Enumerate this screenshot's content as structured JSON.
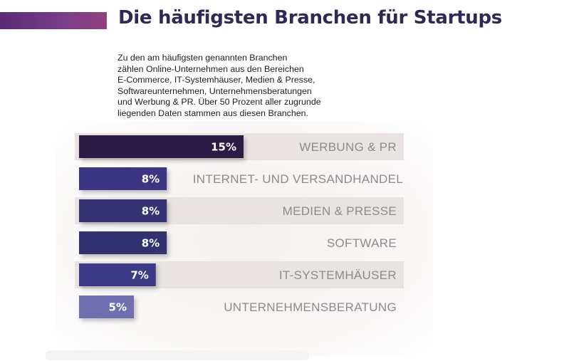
{
  "header": {
    "title": "Die häufigsten Branchen für Startups",
    "accent_color": "#6b3383"
  },
  "intro_text": "Zu den am häufigsten genannten Branchen\nzählen Online-Unternehmen aus den Bereichen\nE-Commerce, IT-Systemhäuser, Medien & Presse,\nSoftwareunternehmen, Unternehmensberatungen\nund Werbung & PR. Über 50 Prozent aller zugrunde\nliegenden Daten stammen aus diesen Branchen.",
  "chart_data": {
    "type": "bar",
    "orientation": "horizontal",
    "categories": [
      "WERBUNG & PR",
      "INTERNET- UND VERSANDHANDEL",
      "MEDIEN & PRESSE",
      "SOFTWARE",
      "IT-SYSTEMHÄUSER",
      "UNTERNEHMENSBERATUNG"
    ],
    "values": [
      15,
      8,
      8,
      8,
      7,
      5
    ],
    "value_labels": [
      "15%",
      "8%",
      "8%",
      "8%",
      "7%",
      "5%"
    ],
    "unit": "%",
    "xlim": [
      0,
      15
    ],
    "bar_colors": [
      "#2a1f45",
      "#3a3682",
      "#353073",
      "#333071",
      "#3d3a88",
      "#6f6eb0"
    ],
    "row_band_color": "#e9e4e2",
    "banded_rows": [
      true,
      false,
      true,
      false,
      true,
      false
    ],
    "grid": false,
    "legend": "none"
  }
}
